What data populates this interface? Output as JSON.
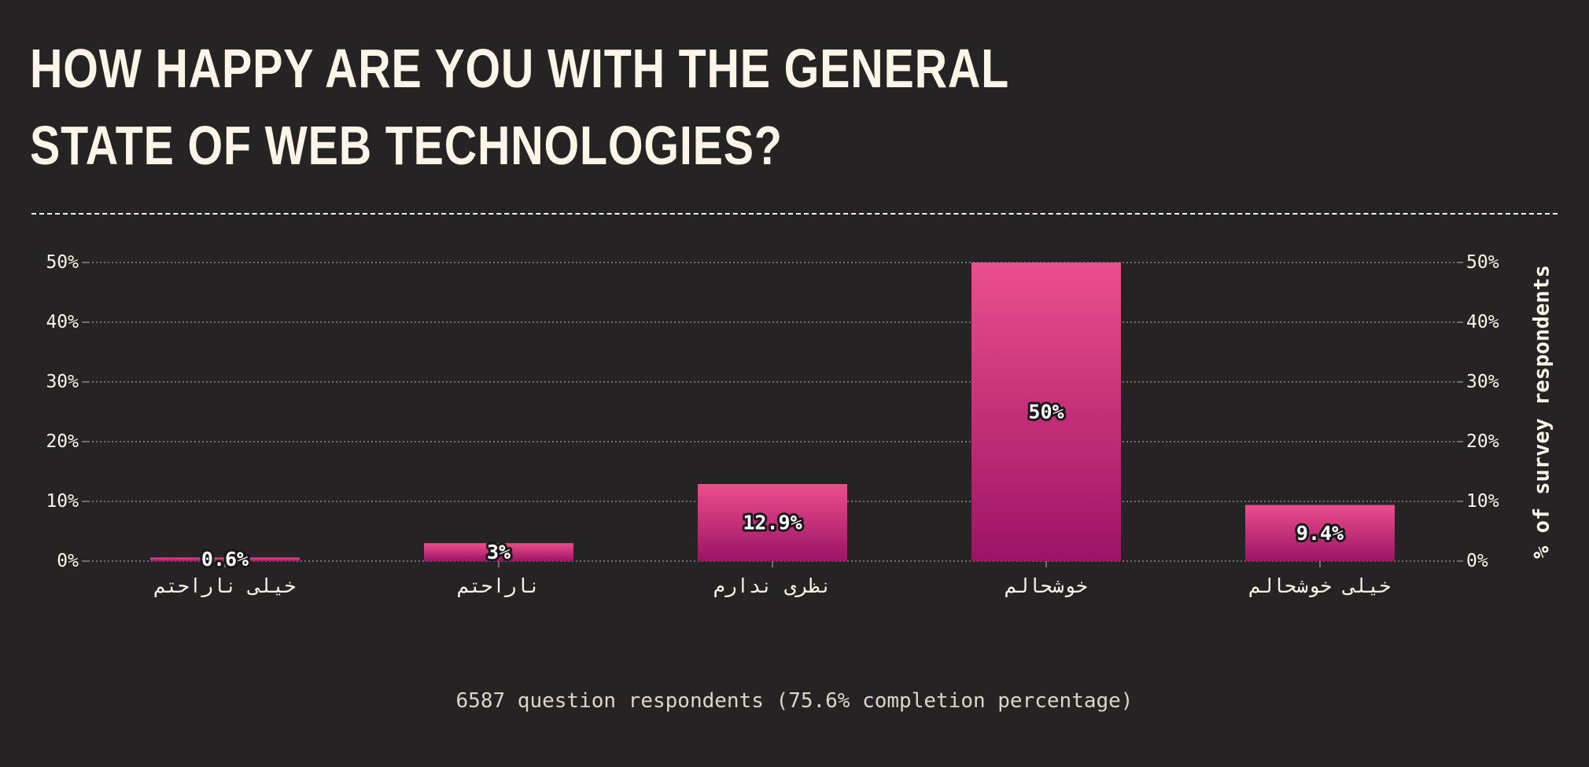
{
  "title": "How happy are you with the general state of web technologies?",
  "footer": "6587 question respondents (75.6% completion percentage)",
  "colors": {
    "background": "#262325",
    "text": "#fdf6e8",
    "bar_top": "#ec4e8b",
    "bar_bottom": "#9c1366",
    "grid": "#8a8486"
  },
  "chart_data": {
    "type": "bar",
    "categories": [
      "خیلی ناراحتم",
      "ناراحتم",
      "نظری ندارم",
      "خوشحالم",
      "خیلی خوشحالم"
    ],
    "values": [
      0.6,
      3,
      12.9,
      50,
      9.4
    ],
    "value_labels": [
      "0.6%",
      "3%",
      "12.9%",
      "50%",
      "9.4%"
    ],
    "y_ticks": [
      "0%",
      "10%",
      "20%",
      "30%",
      "40%",
      "50%"
    ],
    "ylim": [
      0,
      50
    ],
    "ylabel": "% of survey respondents",
    "grid": true
  }
}
